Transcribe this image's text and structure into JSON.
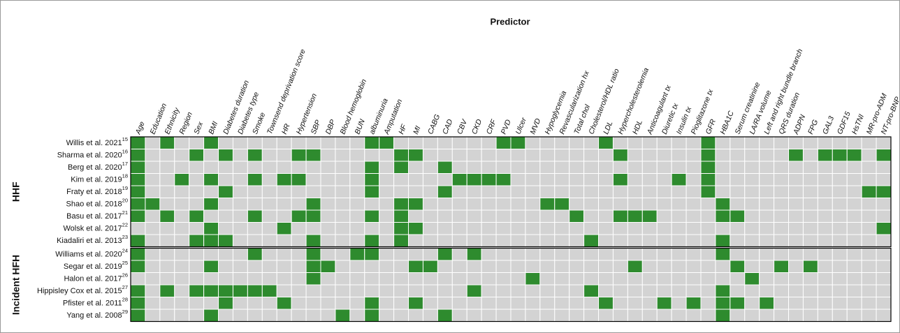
{
  "chart_data": {
    "type": "heatmap",
    "title": "Predictor",
    "present_color": "#2e8b2e",
    "absent_color": "#d3d3d3",
    "columns": [
      "Age",
      "Education",
      "Ethnicity",
      "Region",
      "Sex",
      "BMI",
      "Diabetes duration",
      "Diabetes type",
      "Smoke",
      "Townsend deprivation score",
      "HR",
      "Hypertension",
      "SBP",
      "DBP",
      "Blood hemoglobin",
      "BUN",
      "albuminuria",
      "Amputation",
      "HF",
      "MI",
      "CABG",
      "CAD",
      "CBV",
      "CKD",
      "CRF",
      "PVD",
      "Ulcer",
      "MVD",
      "Hypoglycemia",
      "Revascularization hx",
      "Total chol",
      "Cholesterol/HDL ratio",
      "LDL",
      "Hypercholesterolemia",
      "HDL",
      "Anticoagulant tx",
      "Diuretic tx",
      "Insulin tx",
      "Pioglitazone tx",
      "GFR",
      "HBA1C",
      "Serum creatinine",
      "LA/RA volume",
      "Left and right bundle branch",
      "QRS duration",
      "ADPN",
      "FPG",
      "GAL3",
      "GDF15",
      "HsTNI",
      "MR-pro-ADM",
      "NT-pro-BNP"
    ],
    "groups": [
      {
        "label": "HHF",
        "rows": [
          {
            "label": "Willis et al. 2021",
            "ref": "15",
            "values": [
              1,
              0,
              1,
              0,
              0,
              1,
              0,
              0,
              0,
              0,
              0,
              0,
              0,
              0,
              0,
              0,
              1,
              1,
              0,
              0,
              0,
              0,
              0,
              0,
              0,
              1,
              1,
              0,
              0,
              0,
              0,
              0,
              1,
              0,
              0,
              0,
              0,
              0,
              0,
              1,
              0,
              0,
              0,
              0,
              0,
              0,
              0,
              0,
              0,
              0,
              0,
              0
            ]
          },
          {
            "label": "Sharma et al. 2020",
            "ref": "16",
            "values": [
              1,
              0,
              0,
              0,
              1,
              0,
              1,
              0,
              1,
              0,
              0,
              1,
              1,
              0,
              0,
              0,
              0,
              0,
              1,
              1,
              0,
              0,
              0,
              0,
              0,
              0,
              0,
              0,
              0,
              0,
              0,
              0,
              0,
              1,
              0,
              0,
              0,
              0,
              0,
              1,
              0,
              0,
              0,
              0,
              0,
              1,
              0,
              1,
              1,
              1,
              0,
              1
            ]
          },
          {
            "label": "Berg et al. 2020",
            "ref": "17",
            "values": [
              1,
              0,
              0,
              0,
              0,
              0,
              0,
              0,
              0,
              0,
              0,
              0,
              0,
              0,
              0,
              0,
              1,
              0,
              1,
              0,
              0,
              1,
              0,
              0,
              0,
              0,
              0,
              0,
              0,
              0,
              0,
              0,
              0,
              0,
              0,
              0,
              0,
              0,
              0,
              1,
              0,
              0,
              0,
              0,
              0,
              0,
              0,
              0,
              0,
              0,
              0,
              0
            ]
          },
          {
            "label": "Kim et al. 2019",
            "ref": "18",
            "values": [
              1,
              0,
              0,
              1,
              0,
              1,
              0,
              0,
              1,
              0,
              1,
              1,
              0,
              0,
              0,
              0,
              1,
              0,
              0,
              0,
              0,
              0,
              1,
              1,
              1,
              1,
              0,
              0,
              0,
              0,
              0,
              0,
              0,
              1,
              0,
              0,
              0,
              1,
              0,
              1,
              0,
              0,
              0,
              0,
              0,
              0,
              0,
              0,
              0,
              0,
              0,
              0
            ]
          },
          {
            "label": "Fraty et al. 2018",
            "ref": "19",
            "values": [
              1,
              0,
              0,
              0,
              0,
              0,
              1,
              0,
              0,
              0,
              0,
              0,
              0,
              0,
              0,
              0,
              1,
              0,
              0,
              0,
              0,
              1,
              0,
              0,
              0,
              0,
              0,
              0,
              0,
              0,
              0,
              0,
              0,
              0,
              0,
              0,
              0,
              0,
              0,
              1,
              0,
              0,
              0,
              0,
              0,
              0,
              0,
              0,
              0,
              0,
              1,
              1
            ]
          },
          {
            "label": "Shao et al. 2018",
            "ref": "20",
            "values": [
              1,
              1,
              0,
              0,
              0,
              1,
              0,
              0,
              0,
              0,
              0,
              0,
              1,
              0,
              0,
              0,
              0,
              0,
              1,
              1,
              0,
              0,
              0,
              0,
              0,
              0,
              0,
              0,
              1,
              1,
              0,
              0,
              0,
              0,
              0,
              0,
              0,
              0,
              0,
              0,
              1,
              0,
              0,
              0,
              0,
              0,
              0,
              0,
              0,
              0,
              0,
              0
            ]
          },
          {
            "label": "Basu et al. 2017",
            "ref": "21",
            "values": [
              1,
              0,
              1,
              0,
              1,
              0,
              0,
              0,
              1,
              0,
              0,
              1,
              1,
              0,
              0,
              0,
              1,
              0,
              1,
              0,
              0,
              0,
              0,
              0,
              0,
              0,
              0,
              0,
              0,
              0,
              1,
              0,
              0,
              1,
              1,
              1,
              0,
              0,
              0,
              0,
              1,
              1,
              0,
              0,
              0,
              0,
              0,
              0,
              0,
              0,
              0,
              0
            ]
          },
          {
            "label": "Wolsk et al. 2017",
            "ref": "22",
            "values": [
              0,
              0,
              0,
              0,
              0,
              1,
              0,
              0,
              0,
              0,
              1,
              0,
              0,
              0,
              0,
              0,
              0,
              0,
              1,
              1,
              0,
              0,
              0,
              0,
              0,
              0,
              0,
              0,
              0,
              0,
              0,
              0,
              0,
              0,
              0,
              0,
              0,
              0,
              0,
              0,
              0,
              0,
              0,
              0,
              0,
              0,
              0,
              0,
              0,
              0,
              0,
              1
            ]
          },
          {
            "label": "Kiadaliri et al. 2013",
            "ref": "23",
            "values": [
              1,
              0,
              0,
              0,
              1,
              1,
              1,
              0,
              0,
              0,
              0,
              0,
              1,
              0,
              0,
              0,
              1,
              0,
              1,
              0,
              0,
              0,
              0,
              0,
              0,
              0,
              0,
              0,
              0,
              0,
              0,
              1,
              0,
              0,
              0,
              0,
              0,
              0,
              0,
              0,
              1,
              0,
              0,
              0,
              0,
              0,
              0,
              0,
              0,
              0,
              0,
              0
            ]
          }
        ]
      },
      {
        "label": "Incident HFH",
        "rows": [
          {
            "label": "Williams et al. 2020",
            "ref": "24",
            "values": [
              1,
              0,
              0,
              0,
              0,
              0,
              0,
              0,
              1,
              0,
              0,
              0,
              1,
              0,
              0,
              1,
              1,
              0,
              0,
              0,
              0,
              1,
              0,
              1,
              0,
              0,
              0,
              0,
              0,
              0,
              0,
              0,
              0,
              0,
              0,
              0,
              0,
              0,
              0,
              0,
              1,
              0,
              0,
              0,
              0,
              0,
              0,
              0,
              0,
              0,
              0,
              0
            ]
          },
          {
            "label": "Segar et al. 2019",
            "ref": "25",
            "values": [
              1,
              0,
              0,
              0,
              0,
              1,
              0,
              0,
              0,
              0,
              0,
              0,
              1,
              1,
              0,
              0,
              0,
              0,
              0,
              1,
              1,
              0,
              0,
              0,
              0,
              0,
              0,
              0,
              0,
              0,
              0,
              0,
              0,
              0,
              1,
              0,
              0,
              0,
              0,
              0,
              0,
              1,
              0,
              0,
              1,
              0,
              1,
              0,
              0,
              0,
              0,
              0
            ]
          },
          {
            "label": "Halon et al. 2017",
            "ref": "26",
            "values": [
              0,
              0,
              0,
              0,
              0,
              0,
              0,
              0,
              0,
              0,
              0,
              0,
              1,
              0,
              0,
              0,
              0,
              0,
              0,
              0,
              0,
              0,
              0,
              0,
              0,
              0,
              0,
              1,
              0,
              0,
              0,
              0,
              0,
              0,
              0,
              0,
              0,
              0,
              0,
              0,
              0,
              0,
              1,
              0,
              0,
              0,
              0,
              0,
              0,
              0,
              0,
              0
            ]
          },
          {
            "label": "Hippisley Cox et al. 2015",
            "ref": "27",
            "values": [
              1,
              0,
              1,
              0,
              1,
              1,
              1,
              1,
              1,
              1,
              0,
              0,
              0,
              0,
              0,
              0,
              0,
              0,
              0,
              0,
              0,
              0,
              0,
              1,
              0,
              0,
              0,
              0,
              0,
              0,
              0,
              1,
              0,
              0,
              0,
              0,
              0,
              0,
              0,
              0,
              1,
              0,
              0,
              0,
              0,
              0,
              0,
              0,
              0,
              0,
              0,
              0
            ]
          },
          {
            "label": "Pfister et al. 2011",
            "ref": "28",
            "values": [
              1,
              0,
              0,
              0,
              0,
              0,
              1,
              0,
              0,
              0,
              1,
              0,
              0,
              0,
              0,
              0,
              1,
              0,
              0,
              1,
              0,
              0,
              0,
              0,
              0,
              0,
              0,
              0,
              0,
              0,
              0,
              0,
              1,
              0,
              0,
              0,
              1,
              0,
              1,
              0,
              1,
              1,
              0,
              1,
              0,
              0,
              0,
              0,
              0,
              0,
              0,
              0
            ]
          },
          {
            "label": "Yang et al. 2008",
            "ref": "29",
            "values": [
              1,
              0,
              0,
              0,
              0,
              1,
              0,
              0,
              0,
              0,
              0,
              0,
              0,
              0,
              1,
              0,
              1,
              0,
              0,
              0,
              0,
              1,
              0,
              0,
              0,
              0,
              0,
              0,
              0,
              0,
              0,
              0,
              0,
              0,
              0,
              0,
              0,
              0,
              0,
              0,
              1,
              0,
              0,
              0,
              0,
              0,
              0,
              0,
              0,
              0,
              0,
              0
            ]
          }
        ]
      }
    ]
  }
}
